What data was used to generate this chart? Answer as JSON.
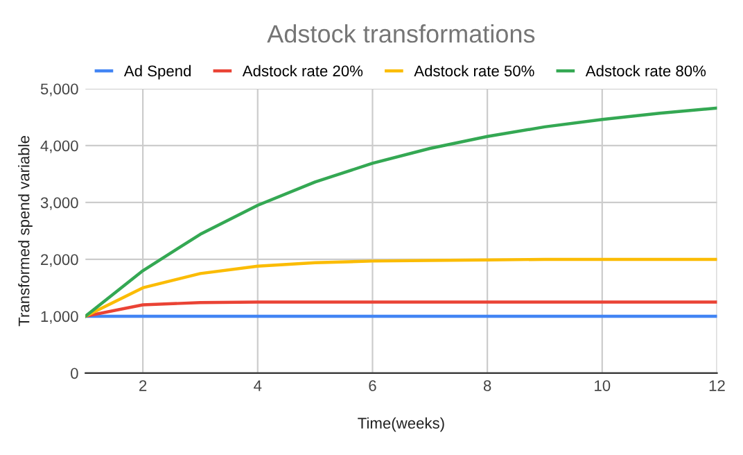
{
  "chart_data": {
    "type": "line",
    "title": "Adstock transformations",
    "xlabel": "Time(weeks)",
    "ylabel": "Transformed spend variable",
    "x": [
      1,
      2,
      3,
      4,
      5,
      6,
      7,
      8,
      9,
      10,
      11,
      12
    ],
    "series": [
      {
        "name": "Ad Spend",
        "color": "#4285f4",
        "values": [
          1000,
          1000,
          1000,
          1000,
          1000,
          1000,
          1000,
          1000,
          1000,
          1000,
          1000,
          1000
        ]
      },
      {
        "name": "Adstock rate 20%",
        "color": "#ea4335",
        "values": [
          1000,
          1200,
          1240,
          1250,
          1250,
          1250,
          1250,
          1250,
          1250,
          1250,
          1250,
          1250
        ]
      },
      {
        "name": "Adstock rate 50%",
        "color": "#fbbc04",
        "values": [
          1000,
          1500,
          1750,
          1880,
          1940,
          1970,
          1980,
          1990,
          2000,
          2000,
          2000,
          2000
        ]
      },
      {
        "name": "Adstock rate 80%",
        "color": "#34a853",
        "values": [
          1000,
          1800,
          2440,
          2950,
          3360,
          3690,
          3950,
          4160,
          4330,
          4460,
          4570,
          4660
        ]
      }
    ],
    "xlim": [
      1,
      12
    ],
    "xticks": [
      2,
      4,
      6,
      8,
      10,
      12
    ],
    "ylim": [
      0,
      5000
    ],
    "yticks": [
      0,
      {
        "value": 1000,
        "label": "1,000"
      },
      {
        "value": 2000,
        "label": "2,000"
      },
      {
        "value": 3000,
        "label": "3,000"
      },
      {
        "value": 4000,
        "label": "4,000"
      },
      {
        "value": 5000,
        "label": "5,000"
      }
    ],
    "grid": true,
    "legend": "top",
    "marker": "none",
    "line_style": "solid"
  }
}
